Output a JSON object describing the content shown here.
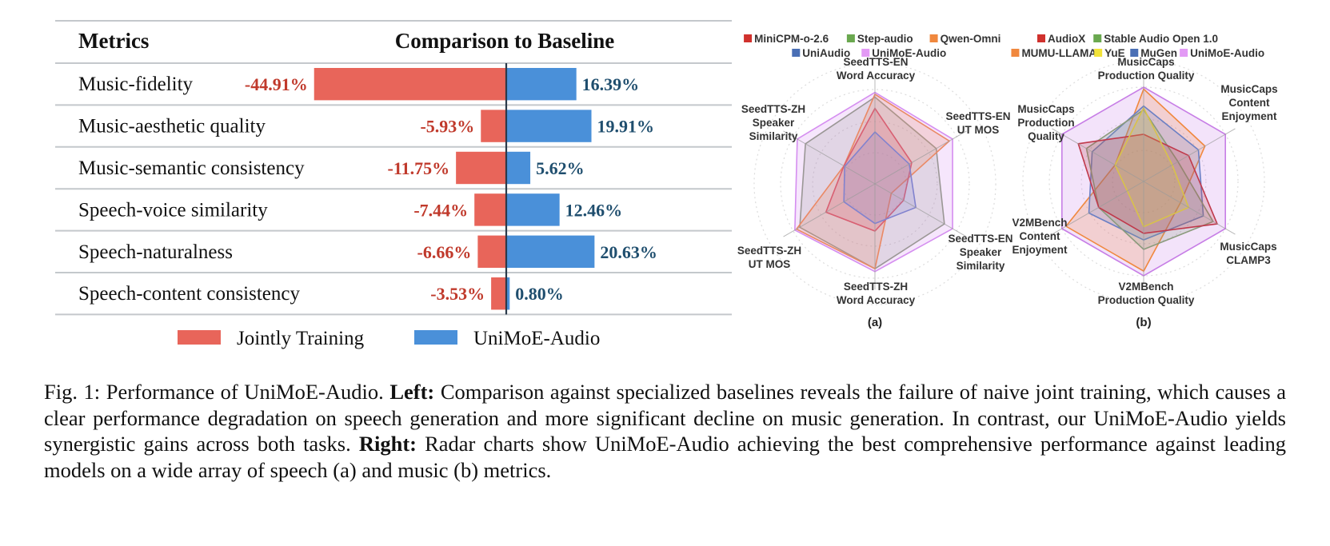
{
  "chart_data": [
    {
      "type": "bar",
      "subtype": "diverging-horizontal",
      "header": {
        "metrics": "Metrics",
        "comparison": "Comparison to Baseline"
      },
      "categories": [
        "Music-fidelity",
        "Music-aesthetic quality",
        "Music-semantic consistency",
        "Speech-voice similarity",
        "Speech-naturalness",
        "Speech-content consistency"
      ],
      "series": [
        {
          "name": "Jointly Training",
          "color": "#e8655a",
          "label_color": "#c0392b",
          "values": [
            -44.91,
            -5.93,
            -11.75,
            -7.44,
            -6.66,
            -3.53
          ],
          "labels": [
            "-44.91%",
            "-5.93%",
            "-11.75%",
            "-7.44%",
            "-6.66%",
            "-3.53%"
          ]
        },
        {
          "name": "UniMoE-Audio",
          "color": "#4a90d9",
          "label_color": "#1f4e6e",
          "values": [
            16.39,
            19.91,
            5.62,
            12.46,
            20.63,
            0.8
          ],
          "labels": [
            "16.39%",
            "19.91%",
            "5.62%",
            "12.46%",
            "20.63%",
            "0.80%"
          ]
        }
      ],
      "xunit": "%",
      "legend": "bottom"
    },
    {
      "type": "radar",
      "panel_label": "(a)",
      "axes": [
        "SeedTTS-EN\nWord Accuracy",
        "SeedTTS-EN\nUT MOS",
        "SeedTTS-EN\nSpeaker\nSimilarity",
        "SeedTTS-ZH\nWord Accuracy",
        "SeedTTS-ZH\nUT MOS",
        "SeedTTS-ZH\nSpeaker\nSimilarity"
      ],
      "range": [
        0,
        1
      ],
      "grid": "dotted-rings",
      "legend": "top",
      "legend_rows": [
        [
          "MiniCPM-o-2.6",
          "Step-audio",
          "Qwen-Omni"
        ],
        [
          "UniAudio",
          "UniMoE-Audio"
        ]
      ],
      "series": [
        {
          "name": "Step-audio",
          "color": "#8a9a7b",
          "legend_color": "#6aa84f",
          "values": [
            0.92,
            0.75,
            0.85,
            0.9,
            0.92,
            0.85
          ]
        },
        {
          "name": "Qwen-Omni",
          "color": "#f0883e",
          "legend_color": "#f0883e",
          "values": [
            0.95,
            0.91,
            0.2,
            0.9,
            0.96,
            0.38
          ]
        },
        {
          "name": "MiniCPM-o-2.6",
          "color": "#d9534f",
          "legend_color": "#d0312d",
          "values": [
            0.8,
            0.45,
            0.35,
            0.5,
            0.6,
            0.38
          ]
        },
        {
          "name": "UniAudio",
          "color": "#6a7fc4",
          "legend_color": "#4a6fb5",
          "values": [
            0.55,
            0.42,
            0.5,
            0.42,
            0.38,
            0.37
          ]
        },
        {
          "name": "UniMoE-Audio",
          "color": "#d58ef0",
          "legend_color": "#e39af5",
          "values": [
            0.97,
            0.95,
            0.95,
            0.93,
            0.98,
            0.95
          ]
        }
      ]
    },
    {
      "type": "radar",
      "panel_label": "(b)",
      "axes": [
        "MusicCaps\nProduction Quality",
        "MusicCaps\nContent\nEnjoyment",
        "MusicCaps\nCLAMP3",
        "V2MBench\nProduction Quality",
        "V2MBench\nContent\nEnjoyment",
        "MusicCaps\nProduction\nQuality"
      ],
      "range": [
        0,
        1
      ],
      "grid": "dotted-rings",
      "legend": "top",
      "legend_rows": [
        [
          "AudioX",
          "Stable Audio Open 1.0"
        ],
        [
          "MUMU-LLAMA",
          "YuE",
          "MuGen",
          "UniMoE-Audio"
        ]
      ],
      "series": [
        {
          "name": "UniMoE-Audio",
          "color": "#c77ee6",
          "legend_color": "#e39af5",
          "values": [
            1.0,
            1.0,
            1.0,
            1.0,
            1.0,
            1.0
          ]
        },
        {
          "name": "MUMU-LLAMA",
          "color": "#f0883e",
          "legend_color": "#f0883e",
          "values": [
            0.98,
            0.75,
            0.45,
            0.95,
            0.95,
            0.35
          ]
        },
        {
          "name": "MuGen",
          "color": "#6a7fc4",
          "legend_color": "#4a6fb5",
          "values": [
            0.8,
            0.67,
            0.73,
            0.62,
            0.67,
            0.63
          ]
        },
        {
          "name": "Stable Audio Open 1.0",
          "color": "#8a9a7b",
          "legend_color": "#6aa84f",
          "values": [
            0.76,
            0.42,
            0.85,
            0.72,
            0.55,
            0.7
          ]
        },
        {
          "name": "AudioX",
          "color": "#c0394b",
          "legend_color": "#d0312d",
          "values": [
            0.5,
            0.55,
            0.9,
            0.55,
            0.55,
            0.8
          ]
        },
        {
          "name": "YuE",
          "color": "#d8c24a",
          "legend_color": "#f2e33a",
          "values": [
            0.78,
            0.35,
            0.55,
            0.48,
            0.2,
            0.35
          ]
        }
      ]
    }
  ],
  "caption": {
    "fig_label": "Fig. 1: Performance of UniMoE-Audio. ",
    "left_bold": "Left:",
    "left_text": " Comparison against specialized baselines reveals the failure of naive joint training, which causes a clear performance degradation on speech generation and more significant decline on music generation. In contrast, our UniMoE-Audio yields synergistic gains across both tasks. ",
    "right_bold": "Right:",
    "right_text": " Radar charts show UniMoE-Audio achieving the best comprehensive performance against leading models on a wide array of speech (a) and music (b) metrics."
  }
}
